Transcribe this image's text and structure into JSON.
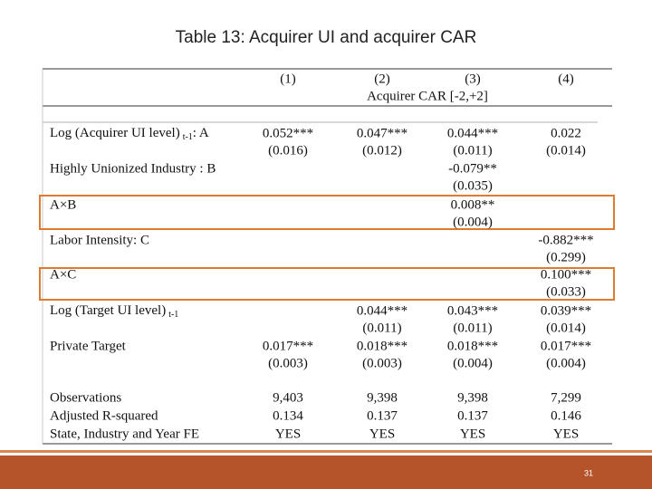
{
  "title": "Table 13: Acquirer UI and acquirer CAR",
  "table": {
    "columns": [
      "(1)",
      "(2)",
      "(3)",
      "(4)"
    ],
    "dependent": "Acquirer CAR [-2,+2]",
    "rows": [
      {
        "label": {
          "text": "Log (Acquirer UI level)",
          "sub": "t-1",
          "after": ": A"
        },
        "coef": [
          "0.052***",
          "0.047***",
          "0.044***",
          "0.022"
        ],
        "se": [
          "(0.016)",
          "(0.012)",
          "(0.011)",
          "(0.014)"
        ]
      },
      {
        "label": "Highly Unionized Industry : B",
        "coef": [
          null,
          null,
          "-0.079**",
          null
        ],
        "se": [
          null,
          null,
          "(0.035)",
          null
        ]
      },
      {
        "label": "A×B",
        "coef": [
          null,
          null,
          "0.008**",
          null
        ],
        "se": [
          null,
          null,
          "(0.004)",
          null
        ]
      },
      {
        "label": "Labor Intensity: C",
        "coef": [
          null,
          null,
          null,
          "-0.882***"
        ],
        "se": [
          null,
          null,
          null,
          "(0.299)"
        ]
      },
      {
        "label": "A×C",
        "coef": [
          null,
          null,
          null,
          "0.100***"
        ],
        "se": [
          null,
          null,
          null,
          "(0.033)"
        ]
      },
      {
        "label": {
          "text": "Log (Target UI level)",
          "sub": "t-1"
        },
        "coef": [
          null,
          "0.044***",
          "0.043***",
          "0.039***"
        ],
        "se": [
          null,
          "(0.011)",
          "(0.011)",
          "(0.014)"
        ]
      },
      {
        "label": "Private Target",
        "coef": [
          "0.017***",
          "0.018***",
          "0.018***",
          "0.017***"
        ],
        "se": [
          "(0.003)",
          "(0.003)",
          "(0.004)",
          "(0.004)"
        ]
      }
    ],
    "stats": [
      {
        "label": "Observations",
        "values": [
          "9,403",
          "9,398",
          "9,398",
          "7,299"
        ]
      },
      {
        "label": "Adjusted R-squared",
        "values": [
          "0.134",
          "0.137",
          "0.137",
          "0.146"
        ]
      },
      {
        "label": "State, Industry and Year FE",
        "values": [
          "YES",
          "YES",
          "YES",
          "YES"
        ]
      }
    ]
  },
  "page_number": "31"
}
